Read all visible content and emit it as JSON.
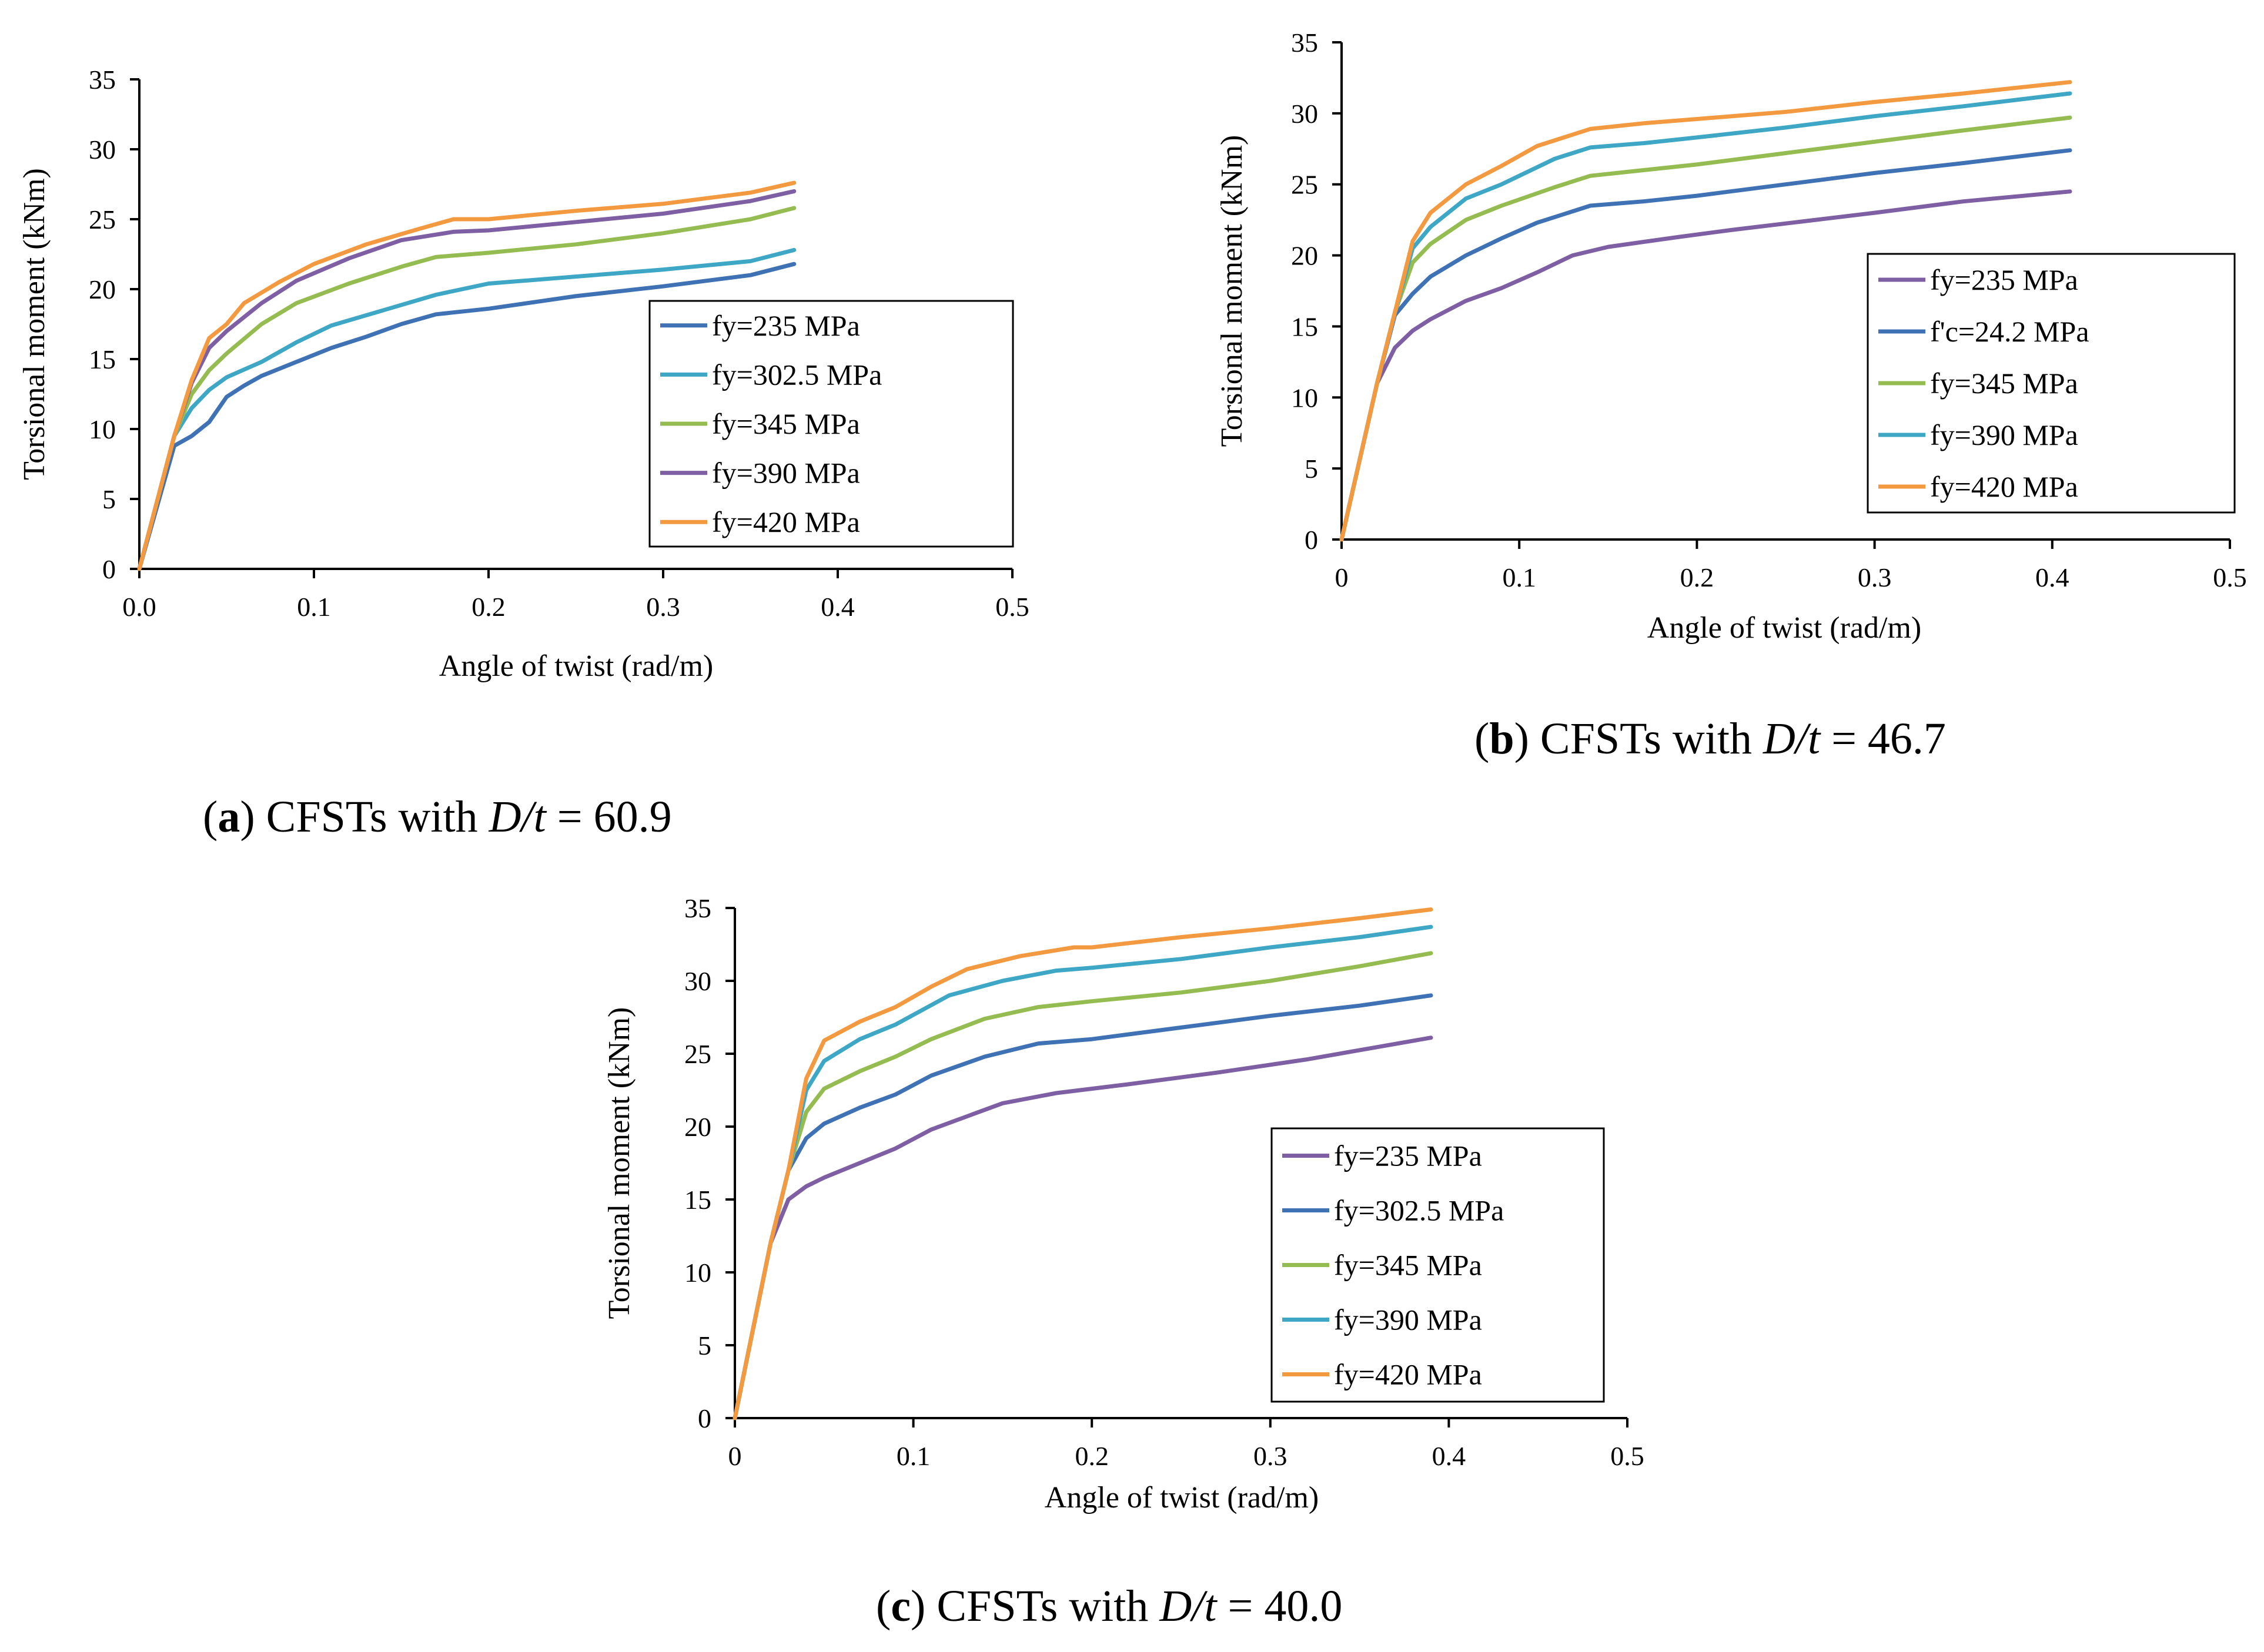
{
  "colors": {
    "purple": "#7E5FA3",
    "blue": "#3F72B4",
    "green": "#94BC50",
    "cyan": "#3EA7C5",
    "orange": "#F39A41"
  },
  "chart_data": [
    {
      "id": "a",
      "type": "line",
      "xlabel": "Angle  of twist  (rad/m)",
      "ylabel": "Torsional  moment  (kNm)",
      "xlim": [
        0,
        0.5
      ],
      "ylim": [
        0,
        35
      ],
      "xticks": [
        "0.0",
        "0.1",
        "0.2",
        "0.3",
        "0.4",
        "0.5"
      ],
      "yticks": [
        "0",
        "5",
        "10",
        "15",
        "20",
        "25",
        "30",
        "35"
      ],
      "caption": {
        "label": "a",
        "prefix": "CFSTs with ",
        "var": "D/t",
        "value": " = 60.9"
      },
      "series": [
        {
          "name": "fy=235 MPa",
          "color": "#3F72B4",
          "points": [
            [
              0,
              0
            ],
            [
              0.02,
              8.8
            ],
            [
              0.03,
              9.5
            ],
            [
              0.04,
              10.5
            ],
            [
              0.05,
              12.3
            ],
            [
              0.06,
              13.1
            ],
            [
              0.07,
              13.8
            ],
            [
              0.09,
              14.8
            ],
            [
              0.11,
              15.8
            ],
            [
              0.13,
              16.6
            ],
            [
              0.15,
              17.5
            ],
            [
              0.17,
              18.2
            ],
            [
              0.2,
              18.6
            ],
            [
              0.25,
              19.5
            ],
            [
              0.3,
              20.2
            ],
            [
              0.35,
              21
            ],
            [
              0.375,
              21.8
            ]
          ]
        },
        {
          "name": "fy=302.5 MPa",
          "color": "#3EA7C5",
          "points": [
            [
              0,
              0
            ],
            [
              0.02,
              9.5
            ],
            [
              0.03,
              11.5
            ],
            [
              0.04,
              12.8
            ],
            [
              0.05,
              13.7
            ],
            [
              0.07,
              14.8
            ],
            [
              0.09,
              16.2
            ],
            [
              0.11,
              17.4
            ],
            [
              0.14,
              18.5
            ],
            [
              0.17,
              19.6
            ],
            [
              0.2,
              20.4
            ],
            [
              0.25,
              20.9
            ],
            [
              0.3,
              21.4
            ],
            [
              0.35,
              22
            ],
            [
              0.375,
              22.8
            ]
          ]
        },
        {
          "name": "fy=345 MPa",
          "color": "#94BC50",
          "points": [
            [
              0,
              0
            ],
            [
              0.02,
              9.5
            ],
            [
              0.03,
              12.5
            ],
            [
              0.04,
              14.2
            ],
            [
              0.05,
              15.4
            ],
            [
              0.07,
              17.5
            ],
            [
              0.09,
              19
            ],
            [
              0.12,
              20.4
            ],
            [
              0.15,
              21.6
            ],
            [
              0.17,
              22.3
            ],
            [
              0.2,
              22.6
            ],
            [
              0.25,
              23.2
            ],
            [
              0.3,
              24
            ],
            [
              0.35,
              25
            ],
            [
              0.375,
              25.8
            ]
          ]
        },
        {
          "name": "fy=390 MPa",
          "color": "#7E5FA3",
          "points": [
            [
              0,
              0
            ],
            [
              0.02,
              9.5
            ],
            [
              0.03,
              13.3
            ],
            [
              0.04,
              15.8
            ],
            [
              0.05,
              17
            ],
            [
              0.07,
              19
            ],
            [
              0.09,
              20.6
            ],
            [
              0.12,
              22.2
            ],
            [
              0.15,
              23.5
            ],
            [
              0.18,
              24.1
            ],
            [
              0.2,
              24.2
            ],
            [
              0.25,
              24.8
            ],
            [
              0.3,
              25.4
            ],
            [
              0.35,
              26.3
            ],
            [
              0.375,
              27
            ]
          ]
        },
        {
          "name": "fy=420 MPa",
          "color": "#F39A41",
          "points": [
            [
              0,
              0
            ],
            [
              0.02,
              9.5
            ],
            [
              0.03,
              13.5
            ],
            [
              0.04,
              16.5
            ],
            [
              0.05,
              17.5
            ],
            [
              0.06,
              19
            ],
            [
              0.08,
              20.5
            ],
            [
              0.1,
              21.8
            ],
            [
              0.13,
              23.2
            ],
            [
              0.16,
              24.3
            ],
            [
              0.18,
              25
            ],
            [
              0.2,
              25
            ],
            [
              0.25,
              25.6
            ],
            [
              0.3,
              26.1
            ],
            [
              0.35,
              26.9
            ],
            [
              0.375,
              27.6
            ]
          ]
        }
      ]
    },
    {
      "id": "b",
      "type": "line",
      "xlabel": "Angle  of twist  (rad/m)",
      "ylabel": "Torsional  moment  (kNm)",
      "xlim": [
        0,
        0.5
      ],
      "ylim": [
        0,
        35
      ],
      "xticks": [
        "0",
        "0.1",
        "0.2",
        "0.3",
        "0.4",
        "0.5"
      ],
      "yticks": [
        "0",
        "5",
        "10",
        "15",
        "20",
        "25",
        "30",
        "35"
      ],
      "caption": {
        "label": "b",
        "prefix": "CFSTs with ",
        "var": "D/t",
        "value": " = 46.7"
      },
      "series": [
        {
          "name": "fy=235 MPa",
          "color": "#7E5FA3",
          "points": [
            [
              0,
              0
            ],
            [
              0.02,
              11
            ],
            [
              0.03,
              13.5
            ],
            [
              0.04,
              14.7
            ],
            [
              0.05,
              15.5
            ],
            [
              0.07,
              16.8
            ],
            [
              0.09,
              17.7
            ],
            [
              0.11,
              18.8
            ],
            [
              0.13,
              20
            ],
            [
              0.15,
              20.6
            ],
            [
              0.19,
              21.3
            ],
            [
              0.22,
              21.8
            ],
            [
              0.26,
              22.4
            ],
            [
              0.3,
              23
            ],
            [
              0.35,
              23.8
            ],
            [
              0.41,
              24.5
            ]
          ]
        },
        {
          "name": "f'c=24.2 MPa",
          "color": "#3F72B4",
          "points": [
            [
              0,
              0
            ],
            [
              0.02,
              11
            ],
            [
              0.03,
              15.8
            ],
            [
              0.04,
              17.3
            ],
            [
              0.05,
              18.5
            ],
            [
              0.07,
              20
            ],
            [
              0.09,
              21.2
            ],
            [
              0.11,
              22.3
            ],
            [
              0.14,
              23.5
            ],
            [
              0.17,
              23.8
            ],
            [
              0.2,
              24.2
            ],
            [
              0.25,
              25
            ],
            [
              0.3,
              25.8
            ],
            [
              0.35,
              26.5
            ],
            [
              0.41,
              27.4
            ]
          ]
        },
        {
          "name": "fy=345 MPa",
          "color": "#94BC50",
          "points": [
            [
              0,
              0
            ],
            [
              0.02,
              11
            ],
            [
              0.03,
              16
            ],
            [
              0.04,
              19.5
            ],
            [
              0.05,
              20.8
            ],
            [
              0.07,
              22.5
            ],
            [
              0.09,
              23.5
            ],
            [
              0.12,
              24.8
            ],
            [
              0.14,
              25.6
            ],
            [
              0.17,
              26
            ],
            [
              0.2,
              26.4
            ],
            [
              0.25,
              27.2
            ],
            [
              0.3,
              28
            ],
            [
              0.35,
              28.8
            ],
            [
              0.41,
              29.7
            ]
          ]
        },
        {
          "name": "fy=390 MPa",
          "color": "#3EA7C5",
          "points": [
            [
              0,
              0
            ],
            [
              0.02,
              11
            ],
            [
              0.03,
              16
            ],
            [
              0.04,
              20.5
            ],
            [
              0.05,
              22
            ],
            [
              0.07,
              24
            ],
            [
              0.09,
              25
            ],
            [
              0.12,
              26.8
            ],
            [
              0.14,
              27.6
            ],
            [
              0.17,
              27.9
            ],
            [
              0.2,
              28.3
            ],
            [
              0.25,
              29
            ],
            [
              0.3,
              29.8
            ],
            [
              0.35,
              30.5
            ],
            [
              0.41,
              31.4
            ]
          ]
        },
        {
          "name": "fy=420 MPa",
          "color": "#F39A41",
          "points": [
            [
              0,
              0
            ],
            [
              0.02,
              11
            ],
            [
              0.03,
              16
            ],
            [
              0.04,
              21
            ],
            [
              0.05,
              23
            ],
            [
              0.07,
              25
            ],
            [
              0.09,
              26.3
            ],
            [
              0.11,
              27.7
            ],
            [
              0.14,
              28.9
            ],
            [
              0.17,
              29.3
            ],
            [
              0.2,
              29.6
            ],
            [
              0.25,
              30.1
            ],
            [
              0.3,
              30.8
            ],
            [
              0.35,
              31.4
            ],
            [
              0.41,
              32.2
            ]
          ]
        }
      ]
    },
    {
      "id": "c",
      "type": "line",
      "xlabel": "Angle  of twist  (rad/m)",
      "ylabel": "Torsional  moment  (kNm)",
      "xlim": [
        0,
        0.5
      ],
      "ylim": [
        0,
        35
      ],
      "xticks": [
        "0",
        "0.1",
        "0.2",
        "0.3",
        "0.4",
        "0.5"
      ],
      "yticks": [
        "0",
        "5",
        "10",
        "15",
        "20",
        "25",
        "30",
        "35"
      ],
      "caption": {
        "label": "c",
        "prefix": "CFSTs with ",
        "var": "D/t",
        "value": " = 40.0"
      },
      "series": [
        {
          "name": "fy=235 MPa",
          "color": "#7E5FA3",
          "points": [
            [
              0,
              0
            ],
            [
              0.02,
              12
            ],
            [
              0.03,
              15
            ],
            [
              0.04,
              15.9
            ],
            [
              0.05,
              16.5
            ],
            [
              0.07,
              17.5
            ],
            [
              0.09,
              18.5
            ],
            [
              0.11,
              19.8
            ],
            [
              0.13,
              20.7
            ],
            [
              0.15,
              21.6
            ],
            [
              0.18,
              22.3
            ],
            [
              0.22,
              22.9
            ],
            [
              0.27,
              23.7
            ],
            [
              0.32,
              24.6
            ],
            [
              0.39,
              26.1
            ]
          ]
        },
        {
          "name": "fy=302.5 MPa",
          "color": "#3F72B4",
          "points": [
            [
              0,
              0
            ],
            [
              0.02,
              12
            ],
            [
              0.03,
              17
            ],
            [
              0.04,
              19.2
            ],
            [
              0.05,
              20.2
            ],
            [
              0.07,
              21.3
            ],
            [
              0.09,
              22.2
            ],
            [
              0.11,
              23.5
            ],
            [
              0.14,
              24.8
            ],
            [
              0.17,
              25.7
            ],
            [
              0.2,
              26
            ],
            [
              0.25,
              26.8
            ],
            [
              0.3,
              27.6
            ],
            [
              0.35,
              28.3
            ],
            [
              0.39,
              29
            ]
          ]
        },
        {
          "name": "fy=345 MPa",
          "color": "#94BC50",
          "points": [
            [
              0,
              0
            ],
            [
              0.02,
              12
            ],
            [
              0.03,
              17
            ],
            [
              0.04,
              21
            ],
            [
              0.05,
              22.6
            ],
            [
              0.07,
              23.8
            ],
            [
              0.09,
              24.8
            ],
            [
              0.11,
              26
            ],
            [
              0.14,
              27.4
            ],
            [
              0.17,
              28.2
            ],
            [
              0.2,
              28.6
            ],
            [
              0.25,
              29.2
            ],
            [
              0.3,
              30
            ],
            [
              0.35,
              31
            ],
            [
              0.39,
              31.9
            ]
          ]
        },
        {
          "name": "fy=390 MPa",
          "color": "#3EA7C5",
          "points": [
            [
              0,
              0
            ],
            [
              0.02,
              12
            ],
            [
              0.03,
              17
            ],
            [
              0.04,
              22.5
            ],
            [
              0.05,
              24.5
            ],
            [
              0.07,
              26
            ],
            [
              0.09,
              27
            ],
            [
              0.12,
              29
            ],
            [
              0.15,
              30
            ],
            [
              0.18,
              30.7
            ],
            [
              0.2,
              30.9
            ],
            [
              0.25,
              31.5
            ],
            [
              0.3,
              32.3
            ],
            [
              0.35,
              33
            ],
            [
              0.39,
              33.7
            ]
          ]
        },
        {
          "name": "fy=420 MPa",
          "color": "#F39A41",
          "points": [
            [
              0,
              0
            ],
            [
              0.02,
              12
            ],
            [
              0.03,
              17
            ],
            [
              0.04,
              23.3
            ],
            [
              0.05,
              25.9
            ],
            [
              0.07,
              27.2
            ],
            [
              0.09,
              28.2
            ],
            [
              0.11,
              29.6
            ],
            [
              0.13,
              30.8
            ],
            [
              0.16,
              31.7
            ],
            [
              0.19,
              32.3
            ],
            [
              0.2,
              32.3
            ],
            [
              0.25,
              33
            ],
            [
              0.3,
              33.6
            ],
            [
              0.35,
              34.3
            ],
            [
              0.39,
              34.9
            ]
          ]
        }
      ]
    }
  ]
}
